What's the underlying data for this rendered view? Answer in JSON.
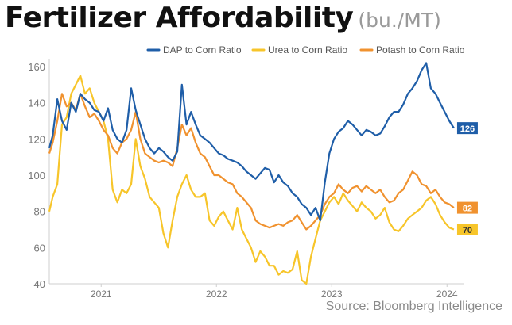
{
  "title": "Fertilizer Affordability",
  "title_unit": "(bu./MT)",
  "source": "Source: Bloomberg Intelligence",
  "colors": {
    "dap": "#1f5ea8",
    "urea": "#f7c52a",
    "potash": "#f0922f",
    "axis_text": "#777777",
    "legend_text": "#555555"
  },
  "chart_data": {
    "type": "line",
    "title": "Fertilizer Affordability",
    "subtitle": "(bu./MT)",
    "xlabel": "",
    "ylabel": "",
    "xlim": [
      2020.55,
      2024.15
    ],
    "ylim": [
      40,
      160
    ],
    "y_ticks": [
      40,
      60,
      80,
      100,
      120,
      140,
      160
    ],
    "x_ticks": [
      {
        "value": 2021.0,
        "label": "2021"
      },
      {
        "value": 2022.0,
        "label": "2022"
      },
      {
        "value": 2023.0,
        "label": "2023"
      },
      {
        "value": 2024.0,
        "label": "2024"
      }
    ],
    "grid": false,
    "legend_position": "top-right",
    "series": [
      {
        "name": "DAP to Corn Ratio",
        "end_label": "126",
        "x": [
          2020.55,
          2020.58,
          2020.62,
          2020.66,
          2020.7,
          2020.74,
          2020.78,
          2020.82,
          2020.86,
          2020.9,
          2020.94,
          2020.98,
          2021.02,
          2021.06,
          2021.1,
          2021.14,
          2021.18,
          2021.22,
          2021.26,
          2021.3,
          2021.34,
          2021.38,
          2021.42,
          2021.46,
          2021.5,
          2021.54,
          2021.58,
          2021.62,
          2021.66,
          2021.7,
          2021.74,
          2021.78,
          2021.82,
          2021.86,
          2021.9,
          2021.94,
          2021.98,
          2022.02,
          2022.06,
          2022.1,
          2022.14,
          2022.18,
          2022.22,
          2022.26,
          2022.3,
          2022.34,
          2022.38,
          2022.42,
          2022.46,
          2022.5,
          2022.54,
          2022.58,
          2022.62,
          2022.66,
          2022.7,
          2022.74,
          2022.78,
          2022.82,
          2022.86,
          2022.9,
          2022.94,
          2022.98,
          2023.02,
          2023.06,
          2023.1,
          2023.14,
          2023.18,
          2023.22,
          2023.26,
          2023.3,
          2023.34,
          2023.38,
          2023.42,
          2023.46,
          2023.5,
          2023.54,
          2023.58,
          2023.62,
          2023.66,
          2023.7,
          2023.74,
          2023.78,
          2023.82,
          2023.86,
          2023.9,
          2023.94,
          2023.98,
          2024.02,
          2024.06
        ],
        "values": [
          115,
          122,
          142,
          130,
          125,
          140,
          135,
          145,
          142,
          140,
          136,
          135,
          130,
          137,
          125,
          120,
          118,
          125,
          148,
          136,
          128,
          120,
          115,
          112,
          115,
          113,
          110,
          108,
          113,
          150,
          128,
          135,
          128,
          122,
          120,
          118,
          115,
          112,
          111,
          109,
          108,
          107,
          105,
          102,
          100,
          98,
          101,
          104,
          103,
          96,
          100,
          96,
          94,
          90,
          88,
          84,
          82,
          78,
          82,
          75,
          96,
          112,
          120,
          124,
          126,
          130,
          128,
          125,
          122,
          125,
          124,
          122,
          123,
          127,
          132,
          135,
          135,
          139,
          145,
          148,
          152,
          158,
          162,
          148,
          145,
          140,
          135,
          130,
          126
        ]
      },
      {
        "name": "Urea to Corn Ratio",
        "end_label": "70",
        "x": [
          2020.55,
          2020.58,
          2020.62,
          2020.66,
          2020.7,
          2020.74,
          2020.78,
          2020.82,
          2020.86,
          2020.9,
          2020.94,
          2020.98,
          2021.02,
          2021.06,
          2021.1,
          2021.14,
          2021.18,
          2021.22,
          2021.26,
          2021.3,
          2021.34,
          2021.38,
          2021.42,
          2021.46,
          2021.5,
          2021.54,
          2021.58,
          2021.62,
          2021.66,
          2021.7,
          2021.74,
          2021.78,
          2021.82,
          2021.86,
          2021.9,
          2021.94,
          2021.98,
          2022.02,
          2022.06,
          2022.1,
          2022.14,
          2022.18,
          2022.22,
          2022.26,
          2022.3,
          2022.34,
          2022.38,
          2022.42,
          2022.46,
          2022.5,
          2022.54,
          2022.58,
          2022.62,
          2022.66,
          2022.7,
          2022.74,
          2022.78,
          2022.82,
          2022.86,
          2022.9,
          2022.94,
          2022.98,
          2023.02,
          2023.06,
          2023.1,
          2023.14,
          2023.18,
          2023.22,
          2023.26,
          2023.3,
          2023.34,
          2023.38,
          2023.42,
          2023.46,
          2023.5,
          2023.54,
          2023.58,
          2023.62,
          2023.66,
          2023.7,
          2023.74,
          2023.78,
          2023.82,
          2023.86,
          2023.9,
          2023.94,
          2023.98,
          2024.02,
          2024.06
        ],
        "values": [
          80,
          88,
          95,
          128,
          132,
          145,
          150,
          155,
          145,
          148,
          140,
          135,
          130,
          120,
          92,
          85,
          92,
          90,
          95,
          120,
          105,
          98,
          88,
          85,
          82,
          68,
          60,
          75,
          88,
          95,
          100,
          92,
          88,
          88,
          90,
          75,
          72,
          77,
          80,
          75,
          70,
          82,
          70,
          65,
          60,
          52,
          58,
          55,
          50,
          50,
          45,
          47,
          46,
          48,
          58,
          42,
          40,
          55,
          65,
          75,
          80,
          85,
          88,
          84,
          90,
          86,
          83,
          80,
          85,
          82,
          80,
          76,
          78,
          82,
          74,
          70,
          69,
          72,
          76,
          78,
          80,
          82,
          86,
          88,
          84,
          78,
          74,
          71,
          70
        ]
      },
      {
        "name": "Potash to Corn Ratio",
        "end_label": "82",
        "x": [
          2020.55,
          2020.58,
          2020.62,
          2020.66,
          2020.7,
          2020.74,
          2020.78,
          2020.82,
          2020.86,
          2020.9,
          2020.94,
          2020.98,
          2021.02,
          2021.06,
          2021.1,
          2021.14,
          2021.18,
          2021.22,
          2021.26,
          2021.3,
          2021.34,
          2021.38,
          2021.42,
          2021.46,
          2021.5,
          2021.54,
          2021.58,
          2021.62,
          2021.66,
          2021.7,
          2021.74,
          2021.78,
          2021.82,
          2021.86,
          2021.9,
          2021.94,
          2021.98,
          2022.02,
          2022.06,
          2022.1,
          2022.14,
          2022.18,
          2022.22,
          2022.26,
          2022.3,
          2022.34,
          2022.38,
          2022.42,
          2022.46,
          2022.5,
          2022.54,
          2022.58,
          2022.62,
          2022.66,
          2022.7,
          2022.74,
          2022.78,
          2022.82,
          2022.86,
          2022.9,
          2022.94,
          2022.98,
          2023.02,
          2023.06,
          2023.1,
          2023.14,
          2023.18,
          2023.22,
          2023.26,
          2023.3,
          2023.34,
          2023.38,
          2023.42,
          2023.46,
          2023.5,
          2023.54,
          2023.58,
          2023.62,
          2023.66,
          2023.7,
          2023.74,
          2023.78,
          2023.82,
          2023.86,
          2023.9,
          2023.94,
          2023.98,
          2024.02,
          2024.06
        ],
        "values": [
          112,
          118,
          130,
          145,
          138,
          140,
          136,
          145,
          138,
          132,
          134,
          130,
          125,
          122,
          115,
          112,
          118,
          120,
          125,
          135,
          120,
          112,
          110,
          108,
          107,
          108,
          107,
          105,
          115,
          128,
          122,
          126,
          118,
          112,
          110,
          105,
          100,
          100,
          98,
          96,
          95,
          90,
          88,
          85,
          82,
          75,
          73,
          72,
          71,
          72,
          73,
          72,
          74,
          75,
          78,
          74,
          70,
          72,
          75,
          78,
          84,
          88,
          90,
          95,
          92,
          90,
          93,
          94,
          91,
          94,
          92,
          90,
          92,
          88,
          85,
          86,
          90,
          92,
          97,
          102,
          100,
          95,
          94,
          90,
          92,
          88,
          85,
          84,
          82
        ]
      }
    ]
  }
}
